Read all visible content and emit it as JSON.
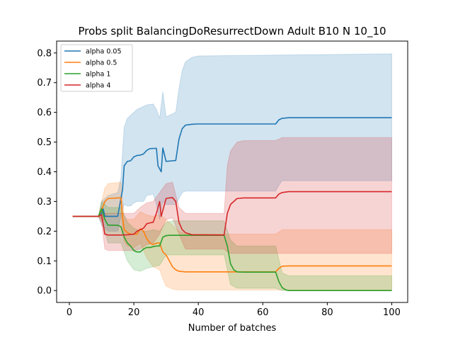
{
  "chart_data": {
    "type": "line",
    "title": "Probs split BalancingDoResurrectDown Adult B10 N 10_10",
    "xlabel": "Number of batches",
    "ylabel": "",
    "xlim": [
      -3.95,
      104.95
    ],
    "ylim": [
      -0.04,
      0.84
    ],
    "x_ticks": [
      0,
      20,
      40,
      60,
      80,
      100
    ],
    "y_ticks": [
      0.0,
      0.1,
      0.2,
      0.3,
      0.4,
      0.5,
      0.6,
      0.7,
      0.8
    ],
    "x_tick_labels": [
      "0",
      "20",
      "40",
      "60",
      "80",
      "100"
    ],
    "y_tick_labels": [
      "0.0",
      "0.1",
      "0.2",
      "0.3",
      "0.4",
      "0.5",
      "0.6",
      "0.7",
      "0.8"
    ],
    "grid": false,
    "legend_position": "top-left",
    "series": [
      {
        "name": "alpha 0.05",
        "color": "#1f77b4",
        "points": [
          [
            1,
            0.25
          ],
          [
            9,
            0.25
          ],
          [
            10,
            0.26
          ],
          [
            10.5,
            0.275
          ],
          [
            11,
            0.25
          ],
          [
            12,
            0.25
          ],
          [
            15,
            0.25
          ],
          [
            16,
            0.31
          ],
          [
            16.5,
            0.34
          ],
          [
            17,
            0.42
          ],
          [
            18,
            0.435
          ],
          [
            19,
            0.437
          ],
          [
            20,
            0.45
          ],
          [
            21,
            0.455
          ],
          [
            22,
            0.456
          ],
          [
            23,
            0.46
          ],
          [
            24,
            0.472
          ],
          [
            25,
            0.478
          ],
          [
            27,
            0.479
          ],
          [
            27.5,
            0.42
          ],
          [
            28.5,
            0.4
          ],
          [
            29,
            0.48
          ],
          [
            30,
            0.435
          ],
          [
            32,
            0.437
          ],
          [
            33,
            0.438
          ],
          [
            34,
            0.51
          ],
          [
            35,
            0.545
          ],
          [
            36,
            0.557
          ],
          [
            38,
            0.56
          ],
          [
            40,
            0.561
          ],
          [
            64,
            0.561
          ],
          [
            65,
            0.575
          ],
          [
            66,
            0.58
          ],
          [
            68,
            0.582
          ],
          [
            100,
            0.582
          ]
        ],
        "band_upper": [
          [
            1,
            0.25
          ],
          [
            9,
            0.25
          ],
          [
            10,
            0.3
          ],
          [
            12,
            0.32
          ],
          [
            15,
            0.33
          ],
          [
            16,
            0.38
          ],
          [
            17,
            0.55
          ],
          [
            18,
            0.58
          ],
          [
            19,
            0.59
          ],
          [
            20,
            0.6
          ],
          [
            21,
            0.61
          ],
          [
            22,
            0.615
          ],
          [
            23,
            0.62
          ],
          [
            24,
            0.625
          ],
          [
            26,
            0.628
          ],
          [
            27,
            0.61
          ],
          [
            28,
            0.58
          ],
          [
            29,
            0.67
          ],
          [
            30,
            0.585
          ],
          [
            32,
            0.595
          ],
          [
            33,
            0.6
          ],
          [
            34,
            0.68
          ],
          [
            35,
            0.74
          ],
          [
            36,
            0.77
          ],
          [
            38,
            0.785
          ],
          [
            40,
            0.79
          ],
          [
            100,
            0.797
          ]
        ],
        "band_lower": [
          [
            1,
            0.25
          ],
          [
            9,
            0.25
          ],
          [
            10,
            0.22
          ],
          [
            12,
            0.2
          ],
          [
            15,
            0.2
          ],
          [
            16,
            0.25
          ],
          [
            17,
            0.29
          ],
          [
            18,
            0.285
          ],
          [
            19,
            0.285
          ],
          [
            20,
            0.295
          ],
          [
            21,
            0.3
          ],
          [
            23,
            0.3
          ],
          [
            24,
            0.32
          ],
          [
            26,
            0.325
          ],
          [
            27,
            0.29
          ],
          [
            28,
            0.24
          ],
          [
            29,
            0.3
          ],
          [
            30,
            0.29
          ],
          [
            33,
            0.29
          ],
          [
            34,
            0.31
          ],
          [
            35,
            0.33
          ],
          [
            36,
            0.335
          ],
          [
            38,
            0.335
          ],
          [
            64,
            0.335
          ],
          [
            65,
            0.355
          ],
          [
            66,
            0.37
          ],
          [
            100,
            0.37
          ]
        ]
      },
      {
        "name": "alpha 0.5",
        "color": "#ff7f0e",
        "points": [
          [
            1,
            0.25
          ],
          [
            9,
            0.25
          ],
          [
            10,
            0.27
          ],
          [
            11,
            0.3
          ],
          [
            12,
            0.31
          ],
          [
            15,
            0.312
          ],
          [
            16,
            0.312
          ],
          [
            16.5,
            0.25
          ],
          [
            17,
            0.205
          ],
          [
            18,
            0.195
          ],
          [
            19,
            0.19
          ],
          [
            20,
            0.19
          ],
          [
            21,
            0.19
          ],
          [
            22,
            0.208
          ],
          [
            23,
            0.2
          ],
          [
            24,
            0.175
          ],
          [
            25,
            0.16
          ],
          [
            26,
            0.155
          ],
          [
            27,
            0.16
          ],
          [
            28,
            0.16
          ],
          [
            29,
            0.13
          ],
          [
            30,
            0.12
          ],
          [
            31,
            0.1
          ],
          [
            32,
            0.08
          ],
          [
            33,
            0.07
          ],
          [
            34,
            0.065
          ],
          [
            36,
            0.063
          ],
          [
            48,
            0.063
          ],
          [
            64,
            0.063
          ],
          [
            65,
            0.075
          ],
          [
            66,
            0.082
          ],
          [
            68,
            0.083
          ],
          [
            100,
            0.083
          ]
        ],
        "band_upper": [
          [
            1,
            0.25
          ],
          [
            9,
            0.25
          ],
          [
            10,
            0.3
          ],
          [
            11,
            0.345
          ],
          [
            12,
            0.36
          ],
          [
            16,
            0.365
          ],
          [
            17,
            0.25
          ],
          [
            18,
            0.24
          ],
          [
            20,
            0.24
          ],
          [
            22,
            0.265
          ],
          [
            24,
            0.255
          ],
          [
            26,
            0.25
          ],
          [
            28,
            0.255
          ],
          [
            30,
            0.24
          ],
          [
            32,
            0.22
          ],
          [
            34,
            0.2
          ],
          [
            36,
            0.19
          ],
          [
            48,
            0.19
          ],
          [
            64,
            0.19
          ],
          [
            66,
            0.205
          ],
          [
            100,
            0.205
          ]
        ],
        "band_lower": [
          [
            1,
            0.25
          ],
          [
            9,
            0.25
          ],
          [
            10,
            0.23
          ],
          [
            12,
            0.26
          ],
          [
            16,
            0.26
          ],
          [
            17,
            0.165
          ],
          [
            18,
            0.15
          ],
          [
            20,
            0.145
          ],
          [
            22,
            0.16
          ],
          [
            24,
            0.11
          ],
          [
            26,
            0.08
          ],
          [
            28,
            0.07
          ],
          [
            29,
            0.04
          ],
          [
            30,
            0.015
          ],
          [
            32,
            0.005
          ],
          [
            34,
            0.002
          ],
          [
            100,
            0.002
          ]
        ]
      },
      {
        "name": "alpha 1",
        "color": "#2ca02c",
        "points": [
          [
            1,
            0.25
          ],
          [
            9,
            0.25
          ],
          [
            10,
            0.275
          ],
          [
            11,
            0.24
          ],
          [
            12,
            0.22
          ],
          [
            15,
            0.22
          ],
          [
            16,
            0.215
          ],
          [
            17,
            0.18
          ],
          [
            18,
            0.16
          ],
          [
            19,
            0.15
          ],
          [
            20,
            0.135
          ],
          [
            21,
            0.13
          ],
          [
            22,
            0.13
          ],
          [
            23,
            0.14
          ],
          [
            24,
            0.145
          ],
          [
            25,
            0.145
          ],
          [
            26,
            0.148
          ],
          [
            27,
            0.15
          ],
          [
            28,
            0.15
          ],
          [
            29,
            0.18
          ],
          [
            30,
            0.185
          ],
          [
            31,
            0.186
          ],
          [
            48,
            0.186
          ],
          [
            49,
            0.15
          ],
          [
            50,
            0.09
          ],
          [
            51,
            0.07
          ],
          [
            52,
            0.063
          ],
          [
            54,
            0.062
          ],
          [
            64,
            0.062
          ],
          [
            65,
            0.03
          ],
          [
            66,
            0.01
          ],
          [
            67,
            0.003
          ],
          [
            68,
            0.0
          ],
          [
            100,
            0.0
          ]
        ],
        "band_upper": [
          [
            1,
            0.25
          ],
          [
            9,
            0.25
          ],
          [
            10,
            0.3
          ],
          [
            12,
            0.28
          ],
          [
            16,
            0.28
          ],
          [
            18,
            0.23
          ],
          [
            20,
            0.21
          ],
          [
            22,
            0.2
          ],
          [
            24,
            0.2
          ],
          [
            26,
            0.205
          ],
          [
            28,
            0.2
          ],
          [
            30,
            0.23
          ],
          [
            32,
            0.235
          ],
          [
            48,
            0.235
          ],
          [
            50,
            0.17
          ],
          [
            52,
            0.15
          ],
          [
            64,
            0.15
          ],
          [
            66,
            0.06
          ],
          [
            68,
            0.05
          ],
          [
            100,
            0.05
          ]
        ],
        "band_lower": [
          [
            1,
            0.25
          ],
          [
            9,
            0.25
          ],
          [
            10,
            0.24
          ],
          [
            12,
            0.16
          ],
          [
            16,
            0.16
          ],
          [
            18,
            0.1
          ],
          [
            20,
            0.07
          ],
          [
            22,
            0.065
          ],
          [
            24,
            0.075
          ],
          [
            26,
            0.08
          ],
          [
            28,
            0.085
          ],
          [
            30,
            0.12
          ],
          [
            32,
            0.12
          ],
          [
            48,
            0.12
          ],
          [
            50,
            0.02
          ],
          [
            52,
            0.008
          ],
          [
            64,
            0.008
          ],
          [
            66,
            0.0
          ],
          [
            100,
            0.0
          ]
        ]
      },
      {
        "name": "alpha 4",
        "color": "#d62728",
        "points": [
          [
            1,
            0.25
          ],
          [
            9,
            0.25
          ],
          [
            10,
            0.255
          ],
          [
            11,
            0.19
          ],
          [
            12,
            0.187
          ],
          [
            16,
            0.187
          ],
          [
            18,
            0.188
          ],
          [
            20,
            0.19
          ],
          [
            21,
            0.2
          ],
          [
            22,
            0.205
          ],
          [
            23,
            0.21
          ],
          [
            24,
            0.225
          ],
          [
            25,
            0.228
          ],
          [
            26,
            0.23
          ],
          [
            27,
            0.26
          ],
          [
            28,
            0.3
          ],
          [
            28.5,
            0.25
          ],
          [
            29,
            0.27
          ],
          [
            30,
            0.31
          ],
          [
            31,
            0.312
          ],
          [
            32,
            0.313
          ],
          [
            33,
            0.3
          ],
          [
            34,
            0.23
          ],
          [
            35,
            0.205
          ],
          [
            36,
            0.195
          ],
          [
            38,
            0.188
          ],
          [
            48,
            0.187
          ],
          [
            49,
            0.26
          ],
          [
            50,
            0.29
          ],
          [
            52,
            0.31
          ],
          [
            54,
            0.312
          ],
          [
            64,
            0.312
          ],
          [
            65,
            0.325
          ],
          [
            66,
            0.33
          ],
          [
            68,
            0.333
          ],
          [
            100,
            0.333
          ]
        ],
        "band_upper": [
          [
            1,
            0.25
          ],
          [
            9,
            0.25
          ],
          [
            10,
            0.28
          ],
          [
            11,
            0.26
          ],
          [
            12,
            0.26
          ],
          [
            16,
            0.26
          ],
          [
            20,
            0.26
          ],
          [
            22,
            0.28
          ],
          [
            24,
            0.295
          ],
          [
            26,
            0.3
          ],
          [
            28,
            0.33
          ],
          [
            30,
            0.36
          ],
          [
            32,
            0.365
          ],
          [
            34,
            0.28
          ],
          [
            36,
            0.26
          ],
          [
            48,
            0.26
          ],
          [
            49,
            0.42
          ],
          [
            50,
            0.47
          ],
          [
            52,
            0.5
          ],
          [
            54,
            0.505
          ],
          [
            64,
            0.505
          ],
          [
            66,
            0.515
          ],
          [
            100,
            0.515
          ]
        ],
        "band_lower": [
          [
            1,
            0.25
          ],
          [
            9,
            0.25
          ],
          [
            10,
            0.23
          ],
          [
            11,
            0.14
          ],
          [
            12,
            0.135
          ],
          [
            16,
            0.135
          ],
          [
            20,
            0.135
          ],
          [
            22,
            0.14
          ],
          [
            24,
            0.155
          ],
          [
            26,
            0.16
          ],
          [
            28,
            0.19
          ],
          [
            30,
            0.24
          ],
          [
            32,
            0.245
          ],
          [
            34,
            0.19
          ],
          [
            36,
            0.14
          ],
          [
            48,
            0.14
          ],
          [
            49,
            0.13
          ],
          [
            50,
            0.125
          ],
          [
            52,
            0.125
          ],
          [
            100,
            0.125
          ]
        ]
      }
    ]
  }
}
